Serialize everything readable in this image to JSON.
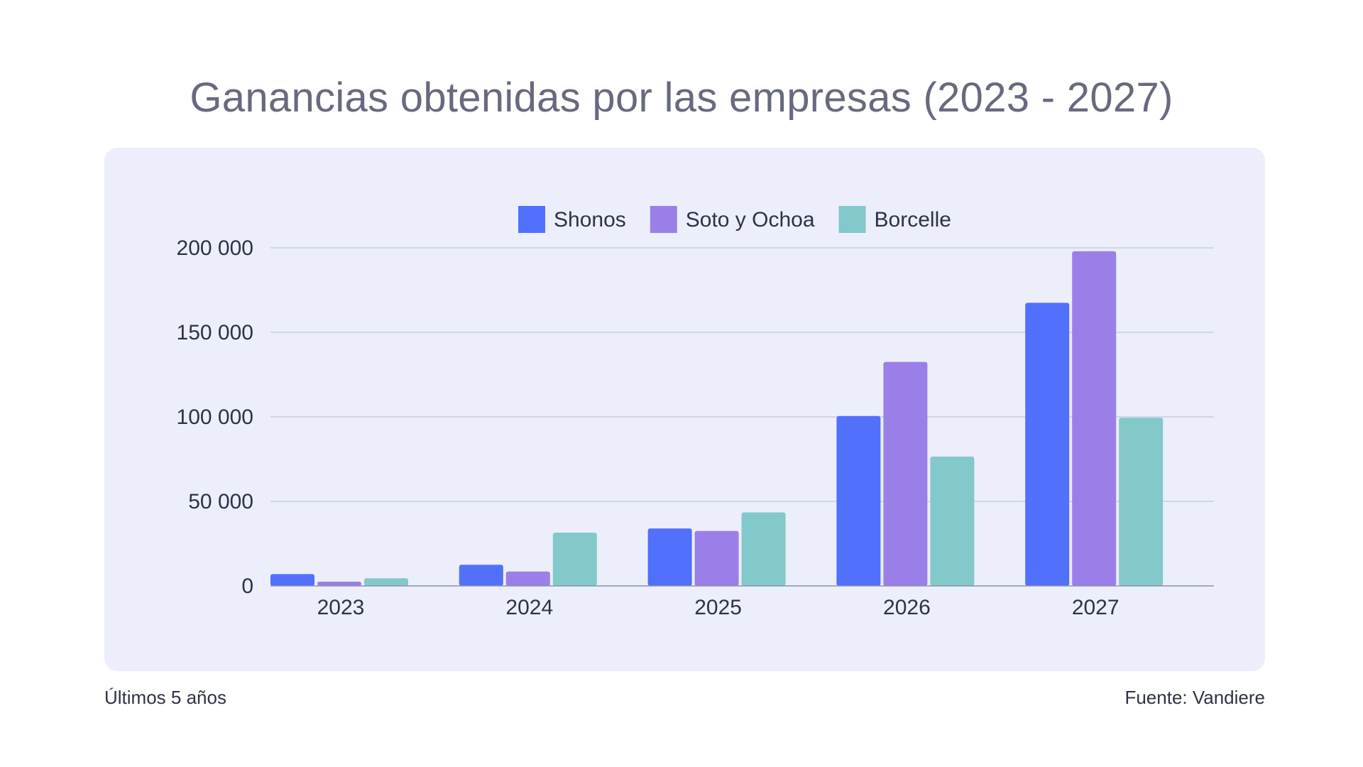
{
  "title": "Ganancias obtenidas por las empresas (2023 - 2027)",
  "footer": {
    "left": "Últimos 5 años",
    "right": "Fuente: Vandiere"
  },
  "chart_data": {
    "type": "bar",
    "categories": [
      "2023",
      "2024",
      "2025",
      "2026",
      "2027"
    ],
    "series": [
      {
        "name": "Shonos",
        "color": "#5170fb",
        "values": [
          7000,
          12500,
          34000,
          100500,
          167500
        ]
      },
      {
        "name": "Soto y Ochoa",
        "color": "#9b7fe9",
        "values": [
          2500,
          8500,
          32500,
          132500,
          198000
        ]
      },
      {
        "name": "Borcelle",
        "color": "#83c8ca",
        "values": [
          4500,
          31500,
          43500,
          76500,
          99500
        ]
      }
    ],
    "yticks": [
      0,
      50000,
      100000,
      150000,
      200000
    ],
    "ytick_labels": [
      "0",
      "50 000",
      "100 000",
      "150 000",
      "200 000"
    ],
    "ylim": [
      0,
      200000
    ],
    "grid": true,
    "legend": "top-center",
    "xlabel": "",
    "ylabel": ""
  }
}
